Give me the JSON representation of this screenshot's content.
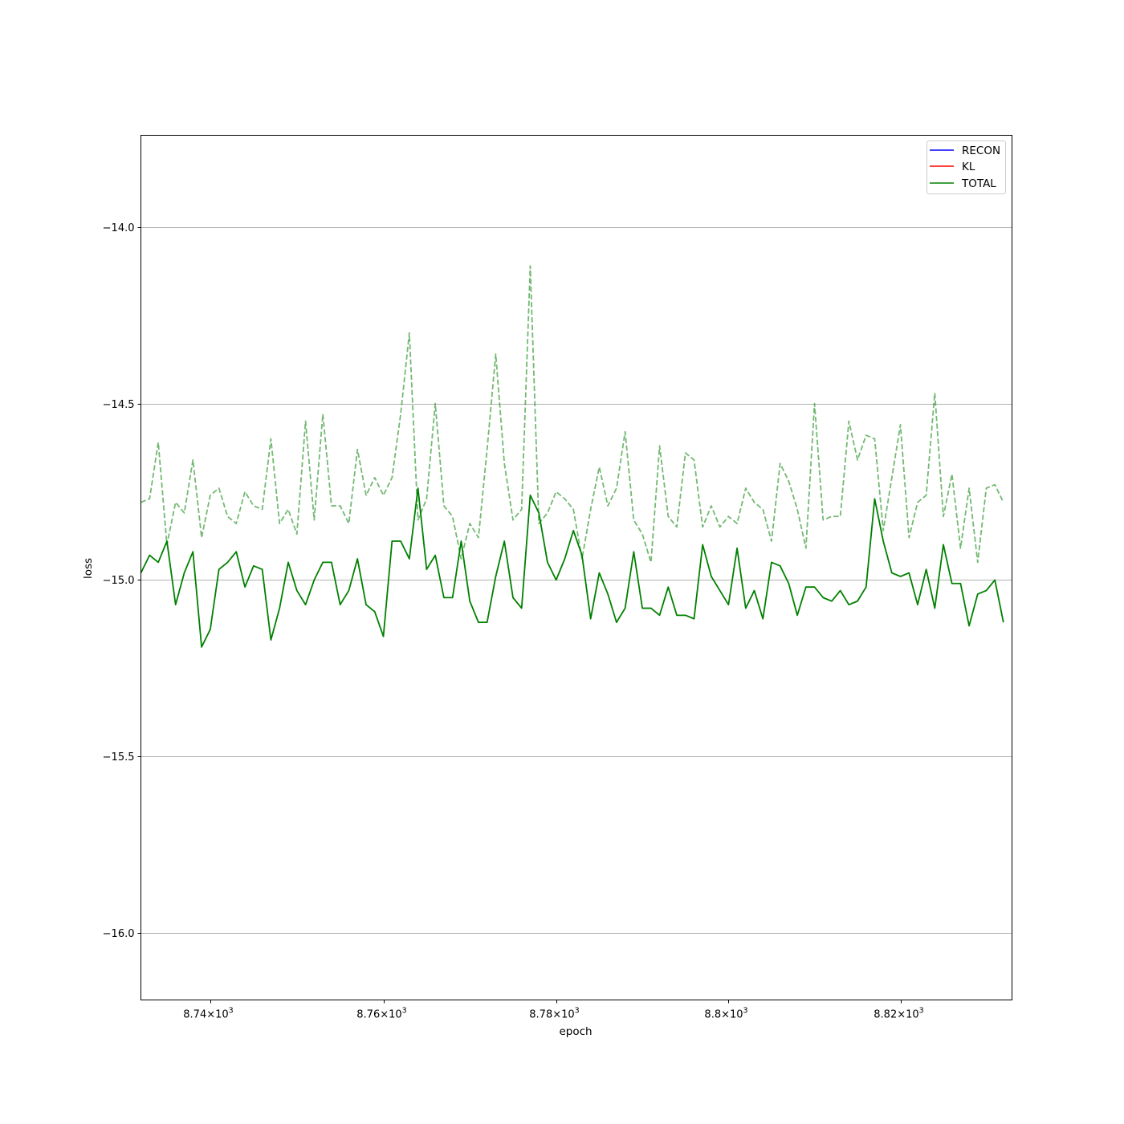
{
  "chart_data": {
    "type": "line",
    "xlabel": "epoch",
    "ylabel": "loss",
    "x_scale": "log",
    "xlim": [
      8732,
      8833
    ],
    "ylim": [
      -16.19,
      -13.74
    ],
    "grid": {
      "y": true,
      "x": false
    },
    "x_ticks": [
      {
        "value": 8740,
        "base": "8.74",
        "exp": "3"
      },
      {
        "value": 8760,
        "base": "8.76",
        "exp": "3"
      },
      {
        "value": 8780,
        "base": "8.78",
        "exp": "3"
      },
      {
        "value": 8800,
        "base": "8.8",
        "exp": "3"
      },
      {
        "value": 8820,
        "base": "8.82",
        "exp": "3"
      }
    ],
    "y_ticks": [
      {
        "value": -14.0,
        "label": "−14.0"
      },
      {
        "value": -14.5,
        "label": "−14.5"
      },
      {
        "value": -15.0,
        "label": "−15.0"
      },
      {
        "value": -15.5,
        "label": "−15.5"
      },
      {
        "value": -16.0,
        "label": "−16.0"
      }
    ],
    "legend": {
      "position": "top-right",
      "entries": [
        {
          "label": "RECON",
          "color": "#0000ff"
        },
        {
          "label": "KL",
          "color": "#ff0000"
        },
        {
          "label": "TOTAL",
          "color": "#008000"
        }
      ]
    },
    "x_start": 8732,
    "series": [
      {
        "name": "TOTAL",
        "color": "#008000",
        "style": "solid",
        "values": [
          -14.98,
          -14.93,
          -14.95,
          -14.89,
          -15.07,
          -14.98,
          -14.92,
          -15.19,
          -15.14,
          -14.97,
          -14.95,
          -14.92,
          -15.02,
          -14.96,
          -14.97,
          -15.17,
          -15.08,
          -14.95,
          -15.03,
          -15.07,
          -15.0,
          -14.95,
          -14.95,
          -15.07,
          -15.03,
          -14.94,
          -15.07,
          -15.09,
          -15.16,
          -14.89,
          -14.89,
          -14.94,
          -14.74,
          -14.97,
          -14.93,
          -15.05,
          -15.05,
          -14.89,
          -15.06,
          -15.12,
          -15.12,
          -14.99,
          -14.89,
          -15.05,
          -15.08,
          -14.76,
          -14.81,
          -14.95,
          -15.0,
          -14.94,
          -14.86,
          -14.93,
          -15.11,
          -14.98,
          -15.04,
          -15.12,
          -15.08,
          -14.92,
          -15.08,
          -15.08,
          -15.1,
          -15.02,
          -15.1,
          -15.1,
          -15.11,
          -14.9,
          -14.99,
          -15.03,
          -15.07,
          -14.91,
          -15.08,
          -15.03,
          -15.11,
          -14.95,
          -14.96,
          -15.01,
          -15.1,
          -15.02,
          -15.02,
          -15.05,
          -15.06,
          -15.03,
          -15.07,
          -15.06,
          -15.02,
          -14.77,
          -14.89,
          -14.98,
          -14.99,
          -14.98,
          -15.07,
          -14.97,
          -15.08,
          -14.9,
          -15.01,
          -15.01,
          -15.13,
          -15.04,
          -15.03,
          -15.0,
          -15.12
        ]
      },
      {
        "name": "",
        "color": "#008000",
        "style": "dashed",
        "opacity": 0.55,
        "values": [
          -14.78,
          -14.77,
          -14.61,
          -14.9,
          -14.78,
          -14.81,
          -14.66,
          -14.88,
          -14.76,
          -14.74,
          -14.82,
          -14.84,
          -14.75,
          -14.79,
          -14.8,
          -14.6,
          -14.84,
          -14.8,
          -14.87,
          -14.55,
          -14.83,
          -14.53,
          -14.79,
          -14.79,
          -14.84,
          -14.63,
          -14.76,
          -14.71,
          -14.76,
          -14.71,
          -14.53,
          -14.3,
          -14.83,
          -14.77,
          -14.5,
          -14.79,
          -14.82,
          -14.94,
          -14.84,
          -14.88,
          -14.63,
          -14.36,
          -14.67,
          -14.83,
          -14.8,
          -14.11,
          -14.84,
          -14.81,
          -14.75,
          -14.77,
          -14.8,
          -14.94,
          -14.8,
          -14.68,
          -14.79,
          -14.74,
          -14.58,
          -14.83,
          -14.87,
          -14.95,
          -14.62,
          -14.82,
          -14.85,
          -14.64,
          -14.66,
          -14.85,
          -14.79,
          -14.85,
          -14.82,
          -14.84,
          -14.74,
          -14.78,
          -14.8,
          -14.89,
          -14.67,
          -14.72,
          -14.8,
          -14.91,
          -14.5,
          -14.83,
          -14.82,
          -14.82,
          -14.55,
          -14.66,
          -14.59,
          -14.6,
          -14.86,
          -14.71,
          -14.56,
          -14.88,
          -14.78,
          -14.76,
          -14.47,
          -14.82,
          -14.7,
          -14.91,
          -14.74,
          -14.95,
          -14.74,
          -14.73,
          -14.78
        ]
      }
    ]
  }
}
